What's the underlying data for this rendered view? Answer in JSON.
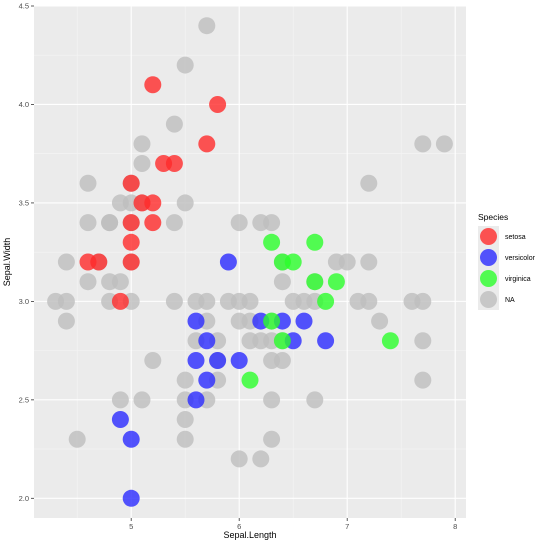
{
  "chart_data": {
    "type": "scatter",
    "xlabel": "Sepal.Length",
    "ylabel": "Sepal.Width",
    "xlim": [
      4.1,
      8.1
    ],
    "ylim": [
      1.9,
      4.5
    ],
    "x_ticks": [
      5,
      6,
      7,
      8
    ],
    "y_ticks": [
      2.0,
      2.5,
      3.0,
      3.5,
      4.0,
      4.5
    ],
    "x_tick_labels": [
      "5",
      "6",
      "7",
      "8"
    ],
    "y_tick_labels": [
      "2.0",
      "2.5",
      "3.0",
      "3.5",
      "4.0",
      "4.5"
    ],
    "grid": true,
    "background": "#ebebeb",
    "legend": {
      "title": "Species",
      "position": "right",
      "entries": [
        {
          "label": "setosa",
          "color": "#ff2a2a"
        },
        {
          "label": "versicolor",
          "color": "#2a2aff"
        },
        {
          "label": "virginica",
          "color": "#2aff2a"
        },
        {
          "label": "NA",
          "color": "#bebebe"
        }
      ]
    },
    "series": [
      {
        "name": "setosa",
        "color": "#ff2a2a",
        "points": [
          [
            5.2,
            4.1
          ],
          [
            5.8,
            4.0
          ],
          [
            5.7,
            3.8
          ],
          [
            5.3,
            3.7
          ],
          [
            5.4,
            3.7
          ],
          [
            5.0,
            3.6
          ],
          [
            5.1,
            3.5
          ],
          [
            5.2,
            3.5
          ],
          [
            5.0,
            3.4
          ],
          [
            5.2,
            3.4
          ],
          [
            5.0,
            3.3
          ],
          [
            4.6,
            3.2
          ],
          [
            4.7,
            3.2
          ],
          [
            5.0,
            3.2
          ],
          [
            4.9,
            3.0
          ]
        ]
      },
      {
        "name": "versicolor",
        "color": "#2a2aff",
        "points": [
          [
            5.9,
            3.2
          ],
          [
            6.2,
            2.9
          ],
          [
            6.4,
            2.9
          ],
          [
            6.6,
            2.9
          ],
          [
            5.6,
            2.9
          ],
          [
            6.5,
            2.8
          ],
          [
            6.8,
            2.8
          ],
          [
            5.7,
            2.8
          ],
          [
            5.6,
            2.7
          ],
          [
            5.8,
            2.7
          ],
          [
            6.0,
            2.7
          ],
          [
            5.7,
            2.6
          ],
          [
            5.6,
            2.5
          ],
          [
            4.9,
            2.4
          ],
          [
            5.0,
            2.3
          ],
          [
            5.0,
            2.0
          ]
        ]
      },
      {
        "name": "virginica",
        "color": "#2aff2a",
        "points": [
          [
            6.3,
            3.3
          ],
          [
            6.7,
            3.3
          ],
          [
            6.4,
            3.2
          ],
          [
            6.5,
            3.2
          ],
          [
            6.7,
            3.1
          ],
          [
            6.9,
            3.1
          ],
          [
            6.8,
            3.0
          ],
          [
            6.3,
            2.9
          ],
          [
            6.4,
            2.8
          ],
          [
            7.4,
            2.8
          ],
          [
            6.1,
            2.6
          ]
        ]
      },
      {
        "name": "NA",
        "color": "#bebebe",
        "points": [
          [
            5.7,
            4.4
          ],
          [
            5.5,
            4.2
          ],
          [
            5.4,
            3.9
          ],
          [
            5.1,
            3.8
          ],
          [
            5.1,
            3.7
          ],
          [
            7.7,
            3.8
          ],
          [
            7.9,
            3.8
          ],
          [
            4.6,
            3.6
          ],
          [
            5.0,
            3.6
          ],
          [
            7.2,
            3.6
          ],
          [
            4.9,
            3.5
          ],
          [
            5.0,
            3.5
          ],
          [
            5.1,
            3.5
          ],
          [
            5.5,
            3.5
          ],
          [
            4.6,
            3.4
          ],
          [
            4.8,
            3.4
          ],
          [
            4.8,
            3.4
          ],
          [
            5.0,
            3.4
          ],
          [
            5.4,
            3.4
          ],
          [
            6.0,
            3.4
          ],
          [
            6.2,
            3.4
          ],
          [
            6.3,
            3.4
          ],
          [
            4.7,
            3.2
          ],
          [
            4.4,
            3.2
          ],
          [
            5.0,
            3.2
          ],
          [
            6.4,
            3.2
          ],
          [
            6.9,
            3.2
          ],
          [
            7.0,
            3.2
          ],
          [
            7.2,
            3.2
          ],
          [
            4.6,
            3.1
          ],
          [
            4.8,
            3.1
          ],
          [
            4.9,
            3.1
          ],
          [
            6.4,
            3.1
          ],
          [
            6.7,
            3.1
          ],
          [
            4.3,
            3.0
          ],
          [
            4.4,
            3.0
          ],
          [
            4.8,
            3.0
          ],
          [
            5.0,
            3.0
          ],
          [
            5.4,
            3.0
          ],
          [
            5.6,
            3.0
          ],
          [
            5.7,
            3.0
          ],
          [
            5.9,
            3.0
          ],
          [
            6.0,
            3.0
          ],
          [
            6.1,
            3.0
          ],
          [
            6.5,
            3.0
          ],
          [
            6.6,
            3.0
          ],
          [
            6.7,
            3.0
          ],
          [
            7.1,
            3.0
          ],
          [
            7.2,
            3.0
          ],
          [
            7.6,
            3.0
          ],
          [
            7.7,
            3.0
          ],
          [
            4.4,
            2.9
          ],
          [
            5.7,
            2.9
          ],
          [
            6.0,
            2.9
          ],
          [
            6.1,
            2.9
          ],
          [
            6.3,
            2.9
          ],
          [
            7.3,
            2.9
          ],
          [
            5.6,
            2.8
          ],
          [
            5.8,
            2.8
          ],
          [
            6.1,
            2.8
          ],
          [
            6.2,
            2.8
          ],
          [
            6.3,
            2.8
          ],
          [
            6.4,
            2.8
          ],
          [
            7.7,
            2.8
          ],
          [
            5.8,
            2.7
          ],
          [
            6.3,
            2.7
          ],
          [
            6.4,
            2.7
          ],
          [
            5.2,
            2.7
          ],
          [
            5.5,
            2.6
          ],
          [
            5.8,
            2.6
          ],
          [
            7.7,
            2.6
          ],
          [
            4.9,
            2.5
          ],
          [
            5.1,
            2.5
          ],
          [
            5.5,
            2.5
          ],
          [
            5.7,
            2.5
          ],
          [
            6.3,
            2.5
          ],
          [
            6.7,
            2.5
          ],
          [
            5.5,
            2.4
          ],
          [
            4.5,
            2.3
          ],
          [
            5.5,
            2.3
          ],
          [
            6.3,
            2.3
          ],
          [
            6.0,
            2.2
          ],
          [
            6.2,
            2.2
          ]
        ]
      }
    ]
  }
}
